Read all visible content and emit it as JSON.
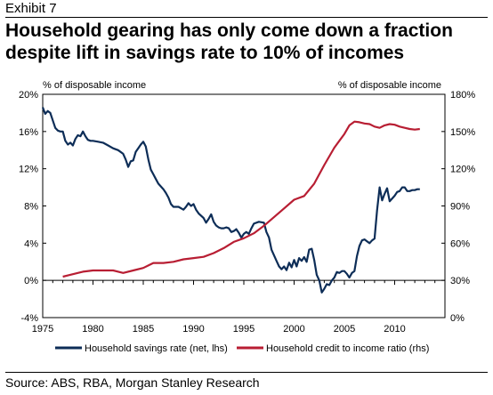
{
  "exhibit": "Exhibit 7",
  "title_line1": "Household gearing has only come down a fraction",
  "title_line2": "despite lift in savings rate to 10% of incomes",
  "source": "Source: ABS, RBA, Morgan Stanley Research",
  "chart_data": {
    "type": "line",
    "left_axis_label": "% of disposable income",
    "right_axis_label": "% of disposable income",
    "xlim": [
      1975,
      2015
    ],
    "ylim_left": [
      -4,
      20
    ],
    "ylim_right": [
      0,
      180
    ],
    "x_ticks": [
      "1975",
      "1980",
      "1985",
      "1990",
      "1995",
      "2000",
      "2005",
      "2010"
    ],
    "y_ticks_left": [
      "-4%",
      "0%",
      "4%",
      "8%",
      "12%",
      "16%",
      "20%"
    ],
    "y_ticks_right": [
      "0%",
      "30%",
      "60%",
      "90%",
      "120%",
      "150%",
      "180%"
    ],
    "grid": false,
    "legend_position": "bottom",
    "series": [
      {
        "name": "Household savings rate (net, lhs)",
        "axis": "left",
        "color": "#0d2d57",
        "points": [
          [
            1975.0,
            18.6
          ],
          [
            1975.25,
            17.9
          ],
          [
            1975.5,
            18.2
          ],
          [
            1975.75,
            18.0
          ],
          [
            1976.0,
            17.2
          ],
          [
            1976.25,
            16.4
          ],
          [
            1976.5,
            16.1
          ],
          [
            1976.75,
            16.0
          ],
          [
            1977.0,
            16.0
          ],
          [
            1977.25,
            15.0
          ],
          [
            1977.5,
            14.6
          ],
          [
            1977.75,
            14.8
          ],
          [
            1978.0,
            14.5
          ],
          [
            1978.25,
            15.2
          ],
          [
            1978.5,
            15.6
          ],
          [
            1978.75,
            15.5
          ],
          [
            1979.0,
            16.0
          ],
          [
            1979.25,
            15.5
          ],
          [
            1979.5,
            15.1
          ],
          [
            1979.75,
            15.0
          ],
          [
            1980.0,
            15.0
          ],
          [
            1980.5,
            14.9
          ],
          [
            1981.0,
            14.8
          ],
          [
            1981.5,
            14.5
          ],
          [
            1982.0,
            14.2
          ],
          [
            1982.5,
            14.0
          ],
          [
            1983.0,
            13.6
          ],
          [
            1983.25,
            13.0
          ],
          [
            1983.5,
            12.2
          ],
          [
            1983.75,
            12.8
          ],
          [
            1984.0,
            12.9
          ],
          [
            1984.25,
            13.8
          ],
          [
            1984.5,
            14.2
          ],
          [
            1984.75,
            14.6
          ],
          [
            1985.0,
            14.9
          ],
          [
            1985.25,
            14.4
          ],
          [
            1985.5,
            13.0
          ],
          [
            1985.75,
            11.9
          ],
          [
            1986.0,
            11.4
          ],
          [
            1986.25,
            10.9
          ],
          [
            1986.5,
            10.4
          ],
          [
            1987.0,
            9.8
          ],
          [
            1987.25,
            9.4
          ],
          [
            1987.5,
            8.9
          ],
          [
            1987.75,
            8.2
          ],
          [
            1988.0,
            7.9
          ],
          [
            1988.5,
            7.9
          ],
          [
            1989.0,
            7.6
          ],
          [
            1989.25,
            7.9
          ],
          [
            1989.5,
            8.3
          ],
          [
            1989.75,
            8.0
          ],
          [
            1990.0,
            8.2
          ],
          [
            1990.25,
            7.6
          ],
          [
            1990.5,
            7.2
          ],
          [
            1991.0,
            6.7
          ],
          [
            1991.25,
            6.2
          ],
          [
            1991.5,
            6.6
          ],
          [
            1991.75,
            7.1
          ],
          [
            1992.0,
            6.3
          ],
          [
            1992.25,
            5.9
          ],
          [
            1992.5,
            5.7
          ],
          [
            1992.75,
            5.6
          ],
          [
            1993.0,
            5.6
          ],
          [
            1993.25,
            5.7
          ],
          [
            1993.5,
            5.6
          ],
          [
            1993.75,
            5.2
          ],
          [
            1994.0,
            5.3
          ],
          [
            1994.25,
            5.5
          ],
          [
            1994.5,
            5.1
          ],
          [
            1994.75,
            4.6
          ],
          [
            1995.0,
            5.0
          ],
          [
            1995.25,
            5.2
          ],
          [
            1995.5,
            5.0
          ],
          [
            1995.75,
            5.6
          ],
          [
            1996.0,
            6.1
          ],
          [
            1996.5,
            6.3
          ],
          [
            1997.0,
            6.2
          ],
          [
            1997.25,
            5.2
          ],
          [
            1997.5,
            4.6
          ],
          [
            1997.75,
            3.3
          ],
          [
            1998.0,
            2.7
          ],
          [
            1998.25,
            2.1
          ],
          [
            1998.5,
            1.5
          ],
          [
            1998.75,
            1.2
          ],
          [
            1999.0,
            1.5
          ],
          [
            1999.25,
            1.1
          ],
          [
            1999.5,
            1.9
          ],
          [
            1999.75,
            1.4
          ],
          [
            2000.0,
            2.2
          ],
          [
            2000.25,
            1.5
          ],
          [
            2000.5,
            2.4
          ],
          [
            2000.75,
            2.1
          ],
          [
            2001.0,
            2.5
          ],
          [
            2001.25,
            2.0
          ],
          [
            2001.5,
            3.3
          ],
          [
            2001.75,
            3.4
          ],
          [
            2002.0,
            2.2
          ],
          [
            2002.25,
            0.6
          ],
          [
            2002.5,
            0.0
          ],
          [
            2002.75,
            -1.3
          ],
          [
            2003.0,
            -0.9
          ],
          [
            2003.25,
            -0.4
          ],
          [
            2003.5,
            -0.5
          ],
          [
            2003.75,
            0.0
          ],
          [
            2004.0,
            0.3
          ],
          [
            2004.25,
            0.9
          ],
          [
            2004.5,
            0.8
          ],
          [
            2004.75,
            1.0
          ],
          [
            2005.0,
            1.0
          ],
          [
            2005.25,
            0.7
          ],
          [
            2005.5,
            0.3
          ],
          [
            2005.75,
            0.8
          ],
          [
            2006.0,
            1.0
          ],
          [
            2006.25,
            2.6
          ],
          [
            2006.5,
            3.7
          ],
          [
            2006.75,
            4.3
          ],
          [
            2007.0,
            4.4
          ],
          [
            2007.25,
            4.2
          ],
          [
            2007.5,
            4.0
          ],
          [
            2007.75,
            4.3
          ],
          [
            2008.0,
            4.5
          ],
          [
            2008.25,
            7.5
          ],
          [
            2008.5,
            10.0
          ],
          [
            2008.75,
            8.6
          ],
          [
            2009.0,
            9.3
          ],
          [
            2009.25,
            9.9
          ],
          [
            2009.5,
            8.5
          ],
          [
            2009.75,
            8.8
          ],
          [
            2010.0,
            9.1
          ],
          [
            2010.25,
            9.5
          ],
          [
            2010.5,
            9.6
          ],
          [
            2010.75,
            10.0
          ],
          [
            2011.0,
            10.0
          ],
          [
            2011.25,
            9.6
          ],
          [
            2011.5,
            9.6
          ],
          [
            2011.75,
            9.7
          ],
          [
            2012.0,
            9.7
          ],
          [
            2012.25,
            9.8
          ],
          [
            2012.5,
            9.8
          ]
        ]
      },
      {
        "name": "Household credit to income ratio (rhs)",
        "axis": "right",
        "color": "#b81e33",
        "points": [
          [
            1977.0,
            33
          ],
          [
            1977.5,
            34
          ],
          [
            1978.0,
            35
          ],
          [
            1978.5,
            36
          ],
          [
            1979.0,
            37
          ],
          [
            1980.0,
            38
          ],
          [
            1981.0,
            38
          ],
          [
            1982.0,
            38
          ],
          [
            1983.0,
            36
          ],
          [
            1984.0,
            38
          ],
          [
            1985.0,
            40
          ],
          [
            1985.5,
            42
          ],
          [
            1986.0,
            44
          ],
          [
            1987.0,
            44
          ],
          [
            1988.0,
            45
          ],
          [
            1989.0,
            47
          ],
          [
            1990.0,
            48
          ],
          [
            1991.0,
            49
          ],
          [
            1992.0,
            52
          ],
          [
            1993.0,
            56
          ],
          [
            1994.0,
            61
          ],
          [
            1995.0,
            64
          ],
          [
            1996.0,
            68
          ],
          [
            1997.0,
            74
          ],
          [
            1998.0,
            81
          ],
          [
            1999.0,
            88
          ],
          [
            2000.0,
            95
          ],
          [
            2001.0,
            98
          ],
          [
            2002.0,
            108
          ],
          [
            2003.0,
            123
          ],
          [
            2004.0,
            137
          ],
          [
            2005.0,
            148
          ],
          [
            2005.5,
            155
          ],
          [
            2006.0,
            158
          ],
          [
            2006.5,
            157.5
          ],
          [
            2007.0,
            156.5
          ],
          [
            2007.5,
            156
          ],
          [
            2008.0,
            154
          ],
          [
            2008.5,
            153
          ],
          [
            2009.0,
            155
          ],
          [
            2009.5,
            156
          ],
          [
            2010.0,
            155.5
          ],
          [
            2010.5,
            154
          ],
          [
            2011.0,
            153
          ],
          [
            2011.5,
            152
          ],
          [
            2012.0,
            151.5
          ],
          [
            2012.5,
            152
          ]
        ]
      }
    ]
  }
}
